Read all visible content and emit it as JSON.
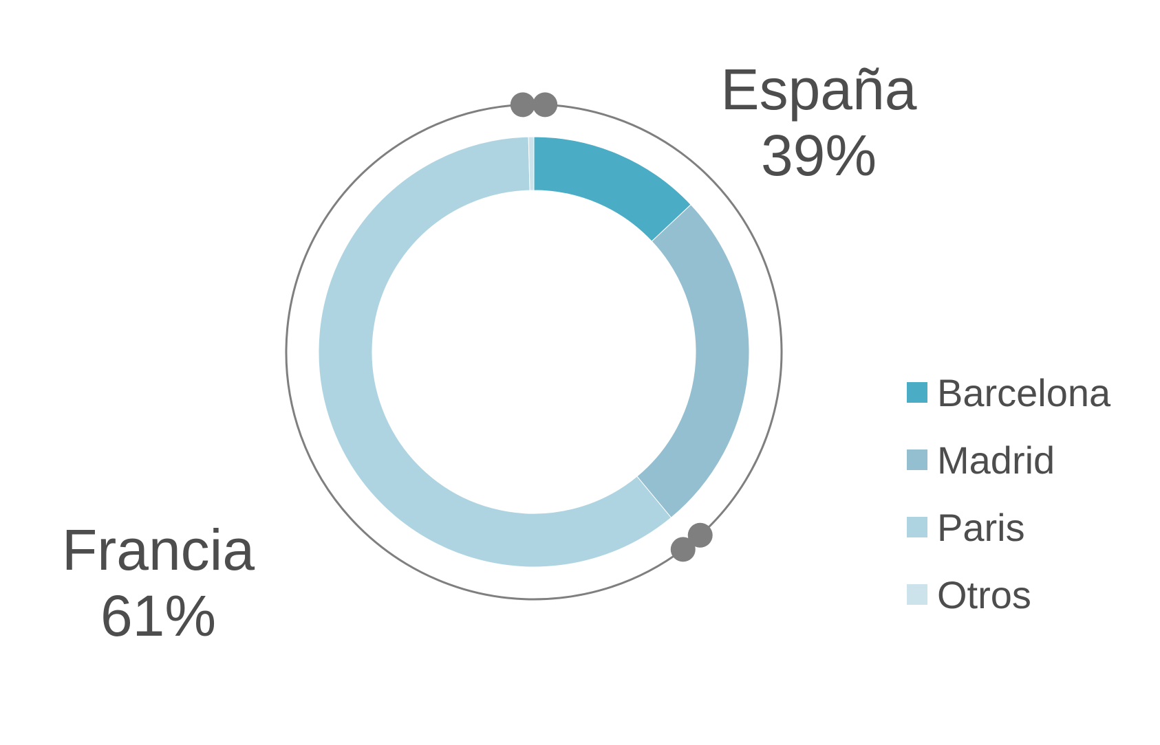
{
  "chart_data": {
    "type": "donut",
    "unit": "%",
    "series": [
      {
        "name": "Barcelona",
        "value": 13,
        "color": "#4bacc6"
      },
      {
        "name": "Madrid",
        "value": 26,
        "color": "#93bfd1"
      },
      {
        "name": "Paris",
        "value": 60.6,
        "color": "#aed4e2"
      },
      {
        "name": "Otros",
        "value": 0.4,
        "color": "#cce3ec"
      }
    ],
    "groups": [
      {
        "name": "España",
        "value_label": "39%",
        "members": [
          "Barcelona",
          "Madrid"
        ]
      },
      {
        "name": "Francia",
        "value_label": "61%",
        "members": [
          "Paris",
          "Otros"
        ]
      }
    ],
    "legend_position": "right",
    "bracket_color": "#7f7f7f",
    "marker_color": "#7f7f7f"
  }
}
